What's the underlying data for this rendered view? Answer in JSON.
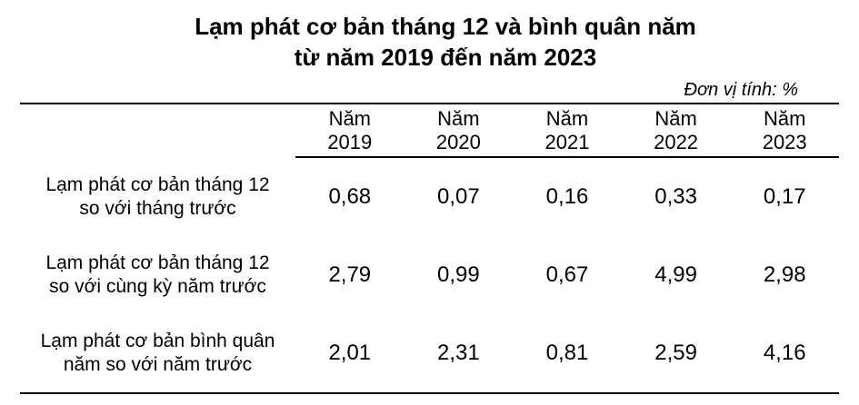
{
  "title": {
    "line1": "Lạm phát cơ bản tháng 12 và bình quân năm",
    "line2": "từ năm 2019 đến năm 2023"
  },
  "unit_note": "Đơn vị tính: %",
  "table": {
    "columns": [
      {
        "line1": "Năm",
        "line2": "2019"
      },
      {
        "line1": "Năm",
        "line2": "2020"
      },
      {
        "line1": "Năm",
        "line2": "2021"
      },
      {
        "line1": "Năm",
        "line2": "2022"
      },
      {
        "line1": "Năm",
        "line2": "2023"
      }
    ],
    "rows": [
      {
        "label_line1": "Lạm phát cơ bản tháng 12",
        "label_line2": "so với tháng trước",
        "values": [
          "0,68",
          "0,07",
          "0,16",
          "0,33",
          "0,17"
        ]
      },
      {
        "label_line1": "Lạm phát cơ bản tháng 12",
        "label_line2": "so với cùng kỳ năm trước",
        "values": [
          "2,79",
          "0,99",
          "0,67",
          "4,99",
          "2,98"
        ]
      },
      {
        "label_line1": "Lạm phát cơ bản bình quân",
        "label_line2": "năm so với năm trước",
        "values": [
          "2,01",
          "2,31",
          "0,81",
          "2,59",
          "4,16"
        ]
      }
    ]
  },
  "colors": {
    "text": "#000000",
    "border": "#000000",
    "background": "#ffffff"
  },
  "chart_data": {
    "type": "table",
    "title": "Lạm phát cơ bản tháng 12 và bình quân năm từ năm 2019 đến năm 2023",
    "unit": "%",
    "categories": [
      "Năm 2019",
      "Năm 2020",
      "Năm 2021",
      "Năm 2022",
      "Năm 2023"
    ],
    "series": [
      {
        "name": "Lạm phát cơ bản tháng 12 so với tháng trước",
        "values": [
          0.68,
          0.07,
          0.16,
          0.33,
          0.17
        ]
      },
      {
        "name": "Lạm phát cơ bản tháng 12 so với cùng kỳ năm trước",
        "values": [
          2.79,
          0.99,
          0.67,
          4.99,
          2.98
        ]
      },
      {
        "name": "Lạm phát cơ bản bình quân năm so với năm trước",
        "values": [
          2.01,
          2.31,
          0.81,
          2.59,
          4.16
        ]
      }
    ]
  }
}
